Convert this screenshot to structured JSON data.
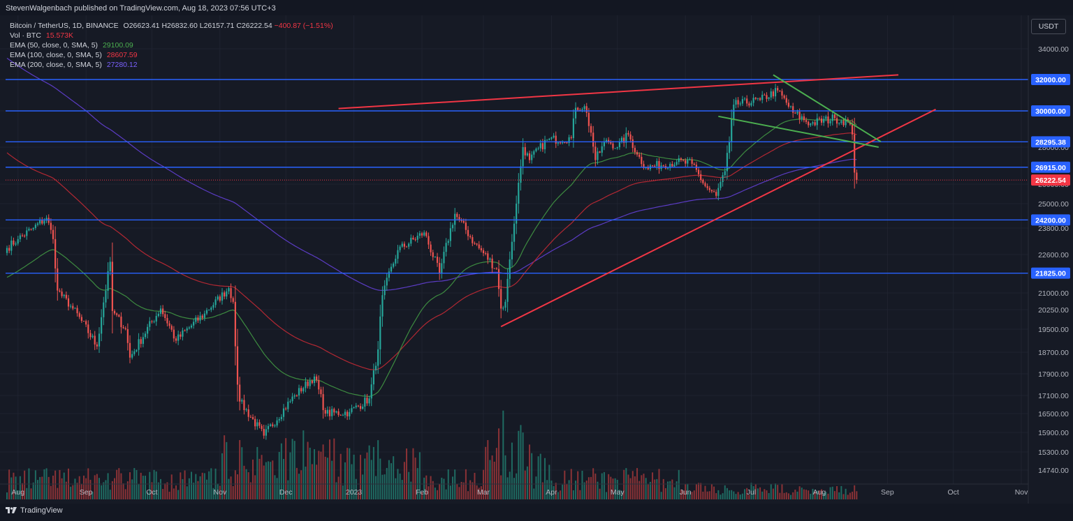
{
  "header": {
    "publisher": "StevenWalgenbach published on TradingView.com, Aug 18, 2023 07:56 UTC+3"
  },
  "legend": {
    "symbol": "Bitcoin / TetherUS, 1D, BINANCE",
    "open": "O26623.41",
    "high": "H26832.60",
    "low": "L26157.71",
    "close": "C26222.54",
    "change": "−400.87 (−1.51%)",
    "vol_label": "Vol · BTC",
    "vol_value": "15.573K",
    "ema50_label": "EMA (50, close, 0, SMA, 5)",
    "ema50_value": "29100.09",
    "ema100_label": "EMA (100, close, 0, SMA, 5)",
    "ema100_value": "28607.59",
    "ema200_label": "EMA (200, close, 0, SMA, 5)",
    "ema200_value": "27280.12"
  },
  "currency_button": "USDT",
  "footer": {
    "brand": "TradingView"
  },
  "colors": {
    "background": "#161a25",
    "up": "#26a69a",
    "down": "#ef5350",
    "hline": "#2962ff",
    "trend_red": "#f23645",
    "trend_green": "#4caf50",
    "ema50": "#4caf50",
    "ema100": "#b22833",
    "ema200": "#5b3cc4"
  },
  "chart_data": {
    "type": "candlestick",
    "x_ticks": [
      "Aug",
      "Sep",
      "Oct",
      "Nov",
      "Dec",
      "2023",
      "Feb",
      "Mar",
      "Apr",
      "May",
      "Jun",
      "Jul",
      "Aug",
      "Sep",
      "Oct",
      "Nov"
    ],
    "x_tick_dates": [
      "2022-08-01",
      "2022-09-01",
      "2022-10-01",
      "2022-11-01",
      "2022-12-01",
      "2023-01-01",
      "2023-02-01",
      "2023-03-01",
      "2023-04-01",
      "2023-05-01",
      "2023-06-01",
      "2023-07-01",
      "2023-08-01",
      "2023-09-01",
      "2023-10-01",
      "2023-11-01"
    ],
    "y_ticks": [
      34000,
      32000,
      30000,
      28000,
      26000,
      25000,
      23800,
      22600,
      21000,
      20250,
      19500,
      18700,
      17900,
      17100,
      16500,
      15900,
      15300,
      14740
    ],
    "y_tick_labels": [
      "34000.00",
      "32000.00",
      "30000.00",
      "28000.00",
      "26000.00",
      "25000.00",
      "23800.00",
      "22600.00",
      "21000.00",
      "20250.00",
      "19500.00",
      "18700.00",
      "17900.00",
      "17100.00",
      "16500.00",
      "15900.00",
      "15300.00",
      "14740.00"
    ],
    "horizontal_levels": [
      32000.0,
      30000.0,
      28295.38,
      26915.0,
      24200.0,
      21825.0
    ],
    "horizontal_level_labels": [
      "32000.00",
      "30000.00",
      "28295.38",
      "26915.00",
      "24200.00",
      "21825.00"
    ],
    "last_price": 26222.54,
    "last_price_label": "26222.54",
    "price_anchors": [
      [
        "2022-07-27",
        22900
      ],
      [
        "2022-08-01",
        23300
      ],
      [
        "2022-08-08",
        23800
      ],
      [
        "2022-08-14",
        24300
      ],
      [
        "2022-08-17",
        23300
      ],
      [
        "2022-08-19",
        21100
      ],
      [
        "2022-08-26",
        20300
      ],
      [
        "2022-09-06",
        18900
      ],
      [
        "2022-09-12",
        22300
      ],
      [
        "2022-09-13",
        20200
      ],
      [
        "2022-09-19",
        19500
      ],
      [
        "2022-09-21",
        18500
      ],
      [
        "2022-10-05",
        20300
      ],
      [
        "2022-10-12",
        19100
      ],
      [
        "2022-10-25",
        20100
      ],
      [
        "2022-11-05",
        21200
      ],
      [
        "2022-11-07",
        20600
      ],
      [
        "2022-11-09",
        17500
      ],
      [
        "2022-11-10",
        16900
      ],
      [
        "2022-11-21",
        15800
      ],
      [
        "2022-12-05",
        17100
      ],
      [
        "2022-12-14",
        17800
      ],
      [
        "2022-12-19",
        16500
      ],
      [
        "2022-12-30",
        16550
      ],
      [
        "2023-01-08",
        17000
      ],
      [
        "2023-01-12",
        18800
      ],
      [
        "2023-01-14",
        20900
      ],
      [
        "2023-01-21",
        22800
      ],
      [
        "2023-02-02",
        23600
      ],
      [
        "2023-02-09",
        21800
      ],
      [
        "2023-02-16",
        24500
      ],
      [
        "2023-02-25",
        23100
      ],
      [
        "2023-03-07",
        22000
      ],
      [
        "2023-03-09",
        20300
      ],
      [
        "2023-03-11",
        20600
      ],
      [
        "2023-03-13",
        22400
      ],
      [
        "2023-03-16",
        25000
      ],
      [
        "2023-03-19",
        28000
      ],
      [
        "2023-03-22",
        27300
      ],
      [
        "2023-03-30",
        28400
      ],
      [
        "2023-04-10",
        28500
      ],
      [
        "2023-04-12",
        30200
      ],
      [
        "2023-04-16",
        30300
      ],
      [
        "2023-04-19",
        28800
      ],
      [
        "2023-04-21",
        27300
      ],
      [
        "2023-04-26",
        28400
      ],
      [
        "2023-05-01",
        28000
      ],
      [
        "2023-05-06",
        28700
      ],
      [
        "2023-05-10",
        27600
      ],
      [
        "2023-05-14",
        26900
      ],
      [
        "2023-05-28",
        27200
      ],
      [
        "2023-06-04",
        27100
      ],
      [
        "2023-06-10",
        25900
      ],
      [
        "2023-06-15",
        25400
      ],
      [
        "2023-06-19",
        26700
      ],
      [
        "2023-06-21",
        28300
      ],
      [
        "2023-06-23",
        30400
      ],
      [
        "2023-07-05",
        30700
      ],
      [
        "2023-07-13",
        31300
      ],
      [
        "2023-07-20",
        29900
      ],
      [
        "2023-07-28",
        29300
      ],
      [
        "2023-08-08",
        29600
      ],
      [
        "2023-08-14",
        29400
      ],
      [
        "2023-08-16",
        28700
      ],
      [
        "2023-08-17",
        26623.41
      ],
      [
        "2023-08-18",
        26222.54
      ]
    ],
    "trend_lines": [
      {
        "color": "red",
        "from": [
          "2022-12-25",
          30150
        ],
        "to": [
          "2023-09-06",
          32300
        ]
      },
      {
        "color": "red",
        "from": [
          "2023-03-09",
          19600
        ],
        "to": [
          "2023-09-23",
          30100
        ]
      },
      {
        "color": "green",
        "from": [
          "2023-07-11",
          32300
        ],
        "to": [
          "2023-08-29",
          28300
        ]
      },
      {
        "color": "green",
        "from": [
          "2023-06-16",
          29700
        ],
        "to": [
          "2023-08-28",
          28000
        ]
      }
    ]
  }
}
